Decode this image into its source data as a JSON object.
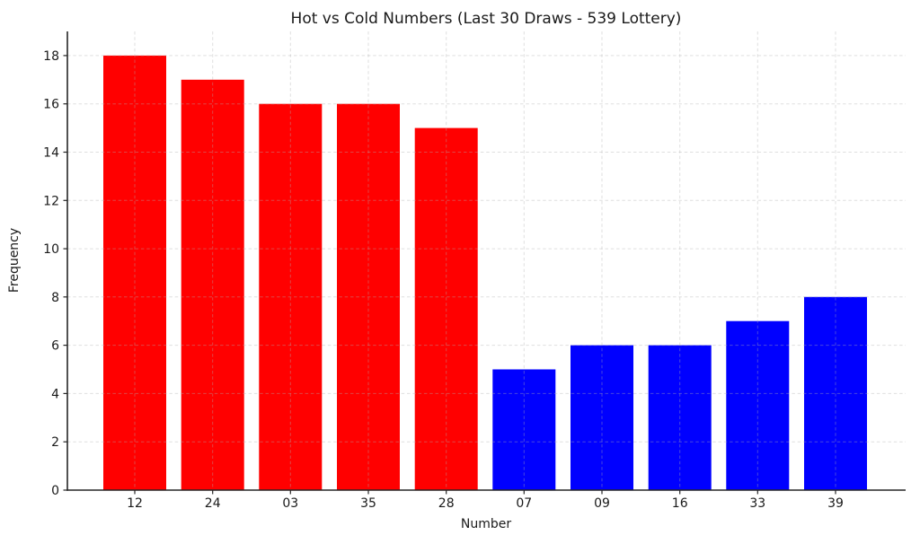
{
  "canvas": {
    "background": "#ffffff"
  },
  "chart_data": {
    "type": "bar",
    "title": "Hot vs Cold Numbers (Last 30 Draws - 539 Lottery)",
    "xlabel": "Number",
    "ylabel": "Frequency",
    "categories": [
      "12",
      "24",
      "03",
      "35",
      "28",
      "07",
      "09",
      "16",
      "33",
      "39"
    ],
    "values": [
      18,
      17,
      16,
      16,
      15,
      5,
      6,
      6,
      7,
      8
    ],
    "bar_colors": [
      "#ff0000",
      "#ff0000",
      "#ff0000",
      "#ff0000",
      "#ff0000",
      "#0000ff",
      "#0000ff",
      "#0000ff",
      "#0000ff",
      "#0000ff"
    ],
    "groups": [
      {
        "name": "hot",
        "color": "#ff0000",
        "categories": [
          "12",
          "24",
          "03",
          "35",
          "28"
        ],
        "values": [
          18,
          17,
          16,
          16,
          15
        ]
      },
      {
        "name": "cold",
        "color": "#0000ff",
        "categories": [
          "07",
          "09",
          "16",
          "33",
          "39"
        ],
        "values": [
          5,
          6,
          6,
          7,
          8
        ]
      }
    ],
    "ylim": [
      0,
      19
    ],
    "yticks": [
      0,
      2,
      4,
      6,
      8,
      10,
      12,
      14,
      16,
      18
    ],
    "grid": true,
    "grid_linestyle": "dashed",
    "grid_on_top": true,
    "legend": "none",
    "axis_color": "#262626",
    "text_color": "#1a1a1a",
    "grid_color": "#b0b0b0"
  }
}
